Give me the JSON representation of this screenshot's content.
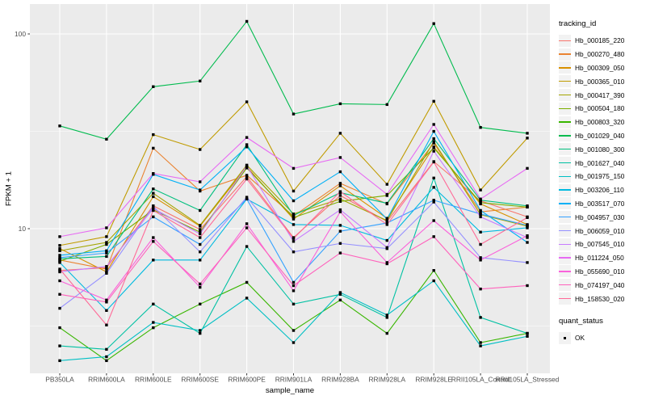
{
  "chart_data": {
    "type": "line",
    "title": "",
    "xlabel": "sample_name",
    "ylabel": "FPKM + 1",
    "y_scale": "log10",
    "ylim": [
      1.8,
      140
    ],
    "y_major_ticks": [
      10,
      100
    ],
    "y_minor_gridlines": [
      3.1623,
      31.623
    ],
    "grid": "white gridlines on gray panel",
    "legend_position": "right",
    "point_marker": "small black square (quant_status OK)",
    "categories": [
      "PB350LA",
      "RRIM600LA",
      "RRIM600LE",
      "RRIM600SE",
      "RRIM600PE",
      "RRIM901LA",
      "RRIM928BA",
      "RRIM928LA",
      "RRIM928LE",
      "RRII105LA_Control",
      "RRII105LA_Stressed"
    ],
    "series": [
      {
        "name": "Hb_000185_220",
        "color": "#F8766D",
        "values": [
          6.1,
          6.3,
          13.1,
          9.9,
          18.5,
          9.0,
          14.8,
          10.9,
          22.1,
          13.9,
          11.5
        ]
      },
      {
        "name": "Hb_000270_480",
        "color": "#EA8331",
        "values": [
          6.9,
          6.2,
          25.9,
          15.6,
          18.8,
          11.6,
          17.1,
          13.4,
          27.5,
          12.2,
          12.9
        ]
      },
      {
        "name": "Hb_000309_050",
        "color": "#D89000",
        "values": [
          7.9,
          6.0,
          14.6,
          10.3,
          20.8,
          11.2,
          16.6,
          11.3,
          26.3,
          13.4,
          10.5
        ]
      },
      {
        "name": "Hb_000365_010",
        "color": "#C09B00",
        "values": [
          8.2,
          9.1,
          30.4,
          25.5,
          44.8,
          15.6,
          30.9,
          16.9,
          45.1,
          15.8,
          29.2
        ]
      },
      {
        "name": "Hb_000417_390",
        "color": "#A3A500",
        "values": [
          7.7,
          8.5,
          15.2,
          10.4,
          21.2,
          11.9,
          14.2,
          11.0,
          28.0,
          11.8,
          10.3
        ]
      },
      {
        "name": "Hb_000504_180",
        "color": "#7CAE00",
        "values": [
          6.8,
          8.3,
          12.5,
          9.6,
          20.5,
          11.4,
          13.8,
          14.8,
          26.0,
          13.6,
          12.9
        ]
      },
      {
        "name": "Hb_000803_320",
        "color": "#39B600",
        "values": [
          3.1,
          2.1,
          3.1,
          4.1,
          5.3,
          3.0,
          4.3,
          2.9,
          6.1,
          2.6,
          2.9
        ]
      },
      {
        "name": "Hb_001029_040",
        "color": "#00BB4E",
        "values": [
          33.7,
          28.8,
          53.6,
          57.3,
          116.0,
          38.8,
          43.8,
          43.4,
          113.0,
          33.1,
          30.9
        ]
      },
      {
        "name": "Hb_001080_300",
        "color": "#00BF7D",
        "values": [
          7.0,
          7.2,
          16.0,
          12.4,
          27.0,
          11.7,
          15.3,
          13.5,
          29.0,
          14.0,
          13.1
        ]
      },
      {
        "name": "Hb_001627_040",
        "color": "#00C1A3",
        "values": [
          2.5,
          2.4,
          4.1,
          2.9,
          8.1,
          4.1,
          4.6,
          3.5,
          18.2,
          3.5,
          2.9
        ]
      },
      {
        "name": "Hb_001975_150",
        "color": "#00BFC4",
        "values": [
          2.1,
          2.2,
          3.3,
          3.0,
          4.4,
          2.6,
          4.7,
          3.6,
          5.4,
          2.5,
          2.8
        ]
      },
      {
        "name": "Hb_003206_110",
        "color": "#00BAE0",
        "values": [
          6.7,
          3.8,
          6.9,
          6.9,
          14.2,
          10.5,
          10.4,
          8.7,
          16.3,
          9.6,
          10.1
        ]
      },
      {
        "name": "Hb_003517_070",
        "color": "#00B0F6",
        "values": [
          7.3,
          7.7,
          19.0,
          15.8,
          26.3,
          13.9,
          19.6,
          11.2,
          31.6,
          12.4,
          8.5
        ]
      },
      {
        "name": "Hb_004957_030",
        "color": "#35A2FF",
        "values": [
          7.1,
          7.5,
          11.5,
          8.3,
          14.2,
          5.3,
          9.7,
          10.7,
          14.0,
          11.9,
          10.4
        ]
      },
      {
        "name": "Hb_006059_010",
        "color": "#9590FF",
        "values": [
          3.9,
          5.9,
          13.0,
          7.6,
          14.5,
          7.6,
          8.4,
          7.9,
          13.7,
          7.1,
          6.7
        ]
      },
      {
        "name": "Hb_007545_010",
        "color": "#C77CFF",
        "values": [
          6.0,
          6.4,
          12.7,
          9.4,
          21.0,
          8.6,
          12.5,
          8.0,
          25.0,
          11.5,
          9.0
        ]
      },
      {
        "name": "Hb_011224_050",
        "color": "#E76BF3",
        "values": [
          9.1,
          10.1,
          19.2,
          17.4,
          29.4,
          20.4,
          23.2,
          15.0,
          34.3,
          14.2,
          20.4
        ]
      },
      {
        "name": "Hb_055690_010",
        "color": "#FA62DB",
        "values": [
          5.4,
          4.3,
          9.0,
          5.0,
          10.6,
          4.8,
          12.2,
          6.7,
          11.0,
          6.9,
          9.2
        ]
      },
      {
        "name": "Hb_074197_040",
        "color": "#FF62BC",
        "values": [
          4.6,
          4.2,
          8.6,
          5.2,
          10.1,
          5.1,
          7.5,
          6.6,
          9.1,
          4.9,
          5.1
        ]
      },
      {
        "name": "Hb_158530_020",
        "color": "#FF6A98",
        "values": [
          6.2,
          3.2,
          12.4,
          9.0,
          18.0,
          8.9,
          15.5,
          10.5,
          22.0,
          8.3,
          11.4
        ]
      }
    ]
  },
  "legend": {
    "tracking_title": "tracking_id",
    "quant_title": "quant_status",
    "quant_ok_label": "OK"
  },
  "colors": {
    "background": "#FFFFFF",
    "panel": "#EBEBEB",
    "gridline": "#FFFFFF",
    "tick_mark": "#333333",
    "tick_label": "#4D4D4D",
    "axis_title": "#000000",
    "point": "#000000",
    "legend_key_bg": "#F2F2F2"
  }
}
